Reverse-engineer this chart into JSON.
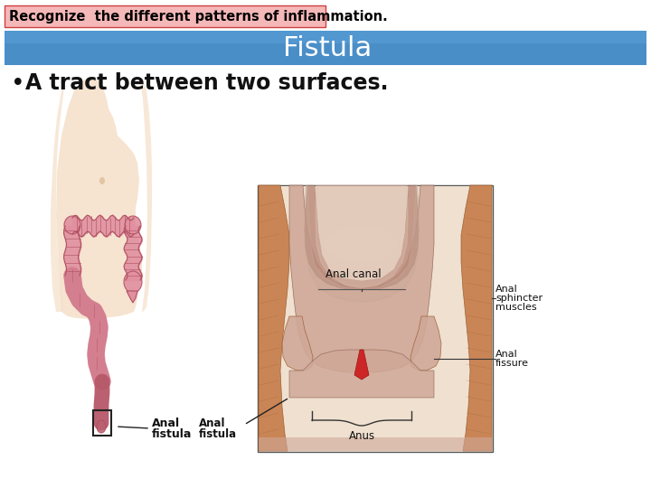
{
  "background_color": "#ffffff",
  "header_box_facecolor": "#f5b8b8",
  "header_box_edgecolor": "#d04040",
  "header_text": "Recognize  the different patterns of inflammation.",
  "header_text_color": "#000000",
  "header_text_size": 10.5,
  "title_bar_color1": "#4a90c8",
  "title_bar_color2": "#2060a0",
  "title_text": "Fistula",
  "title_text_color": "#ffffff",
  "title_text_size": 22,
  "bullet_text": "A tract between two surfaces.",
  "bullet_text_color": "#111111",
  "bullet_text_size": 17,
  "skin_light": "#f5dfc8",
  "skin_mid": "#e8c8a8",
  "skin_dark": "#d4a878",
  "colon_pink": "#e090a0",
  "colon_edge": "#b05060",
  "colon_dark": "#c06878",
  "muscle_base": "#c88050",
  "muscle_mid": "#b06840",
  "muscle_dark": "#986030",
  "canal_light": "#d0a898",
  "canal_mid": "#b88878",
  "canal_dark": "#906858",
  "label_color": "#111111",
  "label_size": 8,
  "fig_width": 7.2,
  "fig_height": 5.4,
  "dpi": 100
}
